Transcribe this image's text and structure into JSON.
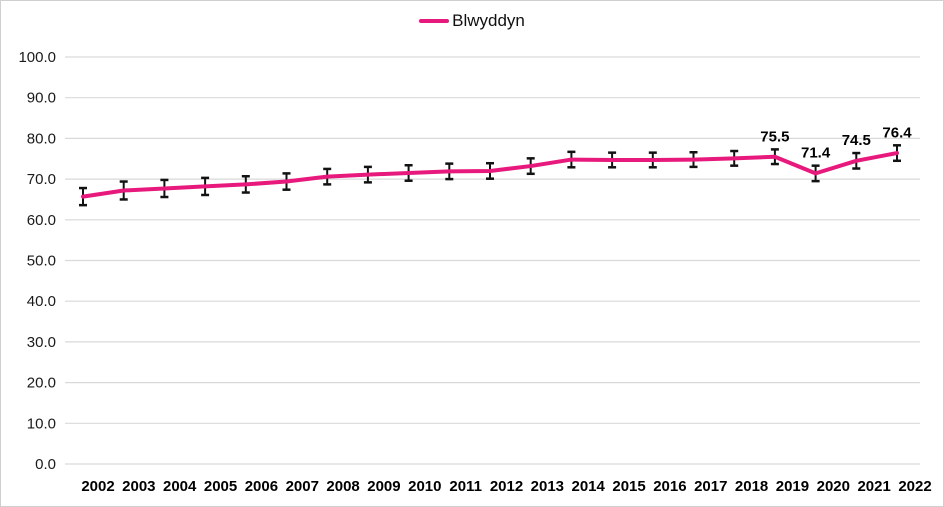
{
  "legend": {
    "label": "Blwyddyn",
    "position": "top"
  },
  "colors": {
    "line": "#E8197D",
    "errorbar": "#121212",
    "gridline": "#D9D9D9",
    "border": "#CFCFCF",
    "axis_text": "#1A1A1A",
    "label_text": "#000000",
    "background": "#FFFFFF"
  },
  "chart_data": {
    "type": "line",
    "legend_entries": [
      "Blwyddyn"
    ],
    "legend_position": "top",
    "grid": "horizontal",
    "ylim": [
      0,
      100
    ],
    "ytick_step": 10,
    "ytick_labels": [
      "0.0",
      "10.0",
      "20.0",
      "30.0",
      "40.0",
      "50.0",
      "60.0",
      "70.0",
      "80.0",
      "90.0",
      "100.0"
    ],
    "categories": [
      "2002",
      "2003",
      "2004",
      "2005",
      "2006",
      "2007",
      "2008",
      "2009",
      "2010",
      "2011",
      "2012",
      "2013",
      "2014",
      "2015",
      "2016",
      "2017",
      "2018",
      "2019",
      "2020",
      "2021",
      "2022"
    ],
    "series": [
      {
        "name": "Blwyddyn",
        "values": [
          65.7,
          67.2,
          67.7,
          68.2,
          68.7,
          69.4,
          70.6,
          71.1,
          71.5,
          71.9,
          72.0,
          73.2,
          74.8,
          74.7,
          74.7,
          74.8,
          75.1,
          75.5,
          71.4,
          74.5,
          76.4
        ],
        "error": [
          2.1,
          2.2,
          2.1,
          2.1,
          2.0,
          2.0,
          1.9,
          1.9,
          1.9,
          1.9,
          1.9,
          1.9,
          1.9,
          1.8,
          1.8,
          1.8,
          1.8,
          1.8,
          1.9,
          1.9,
          1.9
        ]
      }
    ],
    "point_labels": [
      "",
      "",
      "",
      "",
      "",
      "",
      "",
      "",
      "",
      "",
      "",
      "",
      "",
      "",
      "",
      "",
      "",
      "75.5",
      "71.4",
      "74.5",
      "76.4"
    ]
  }
}
